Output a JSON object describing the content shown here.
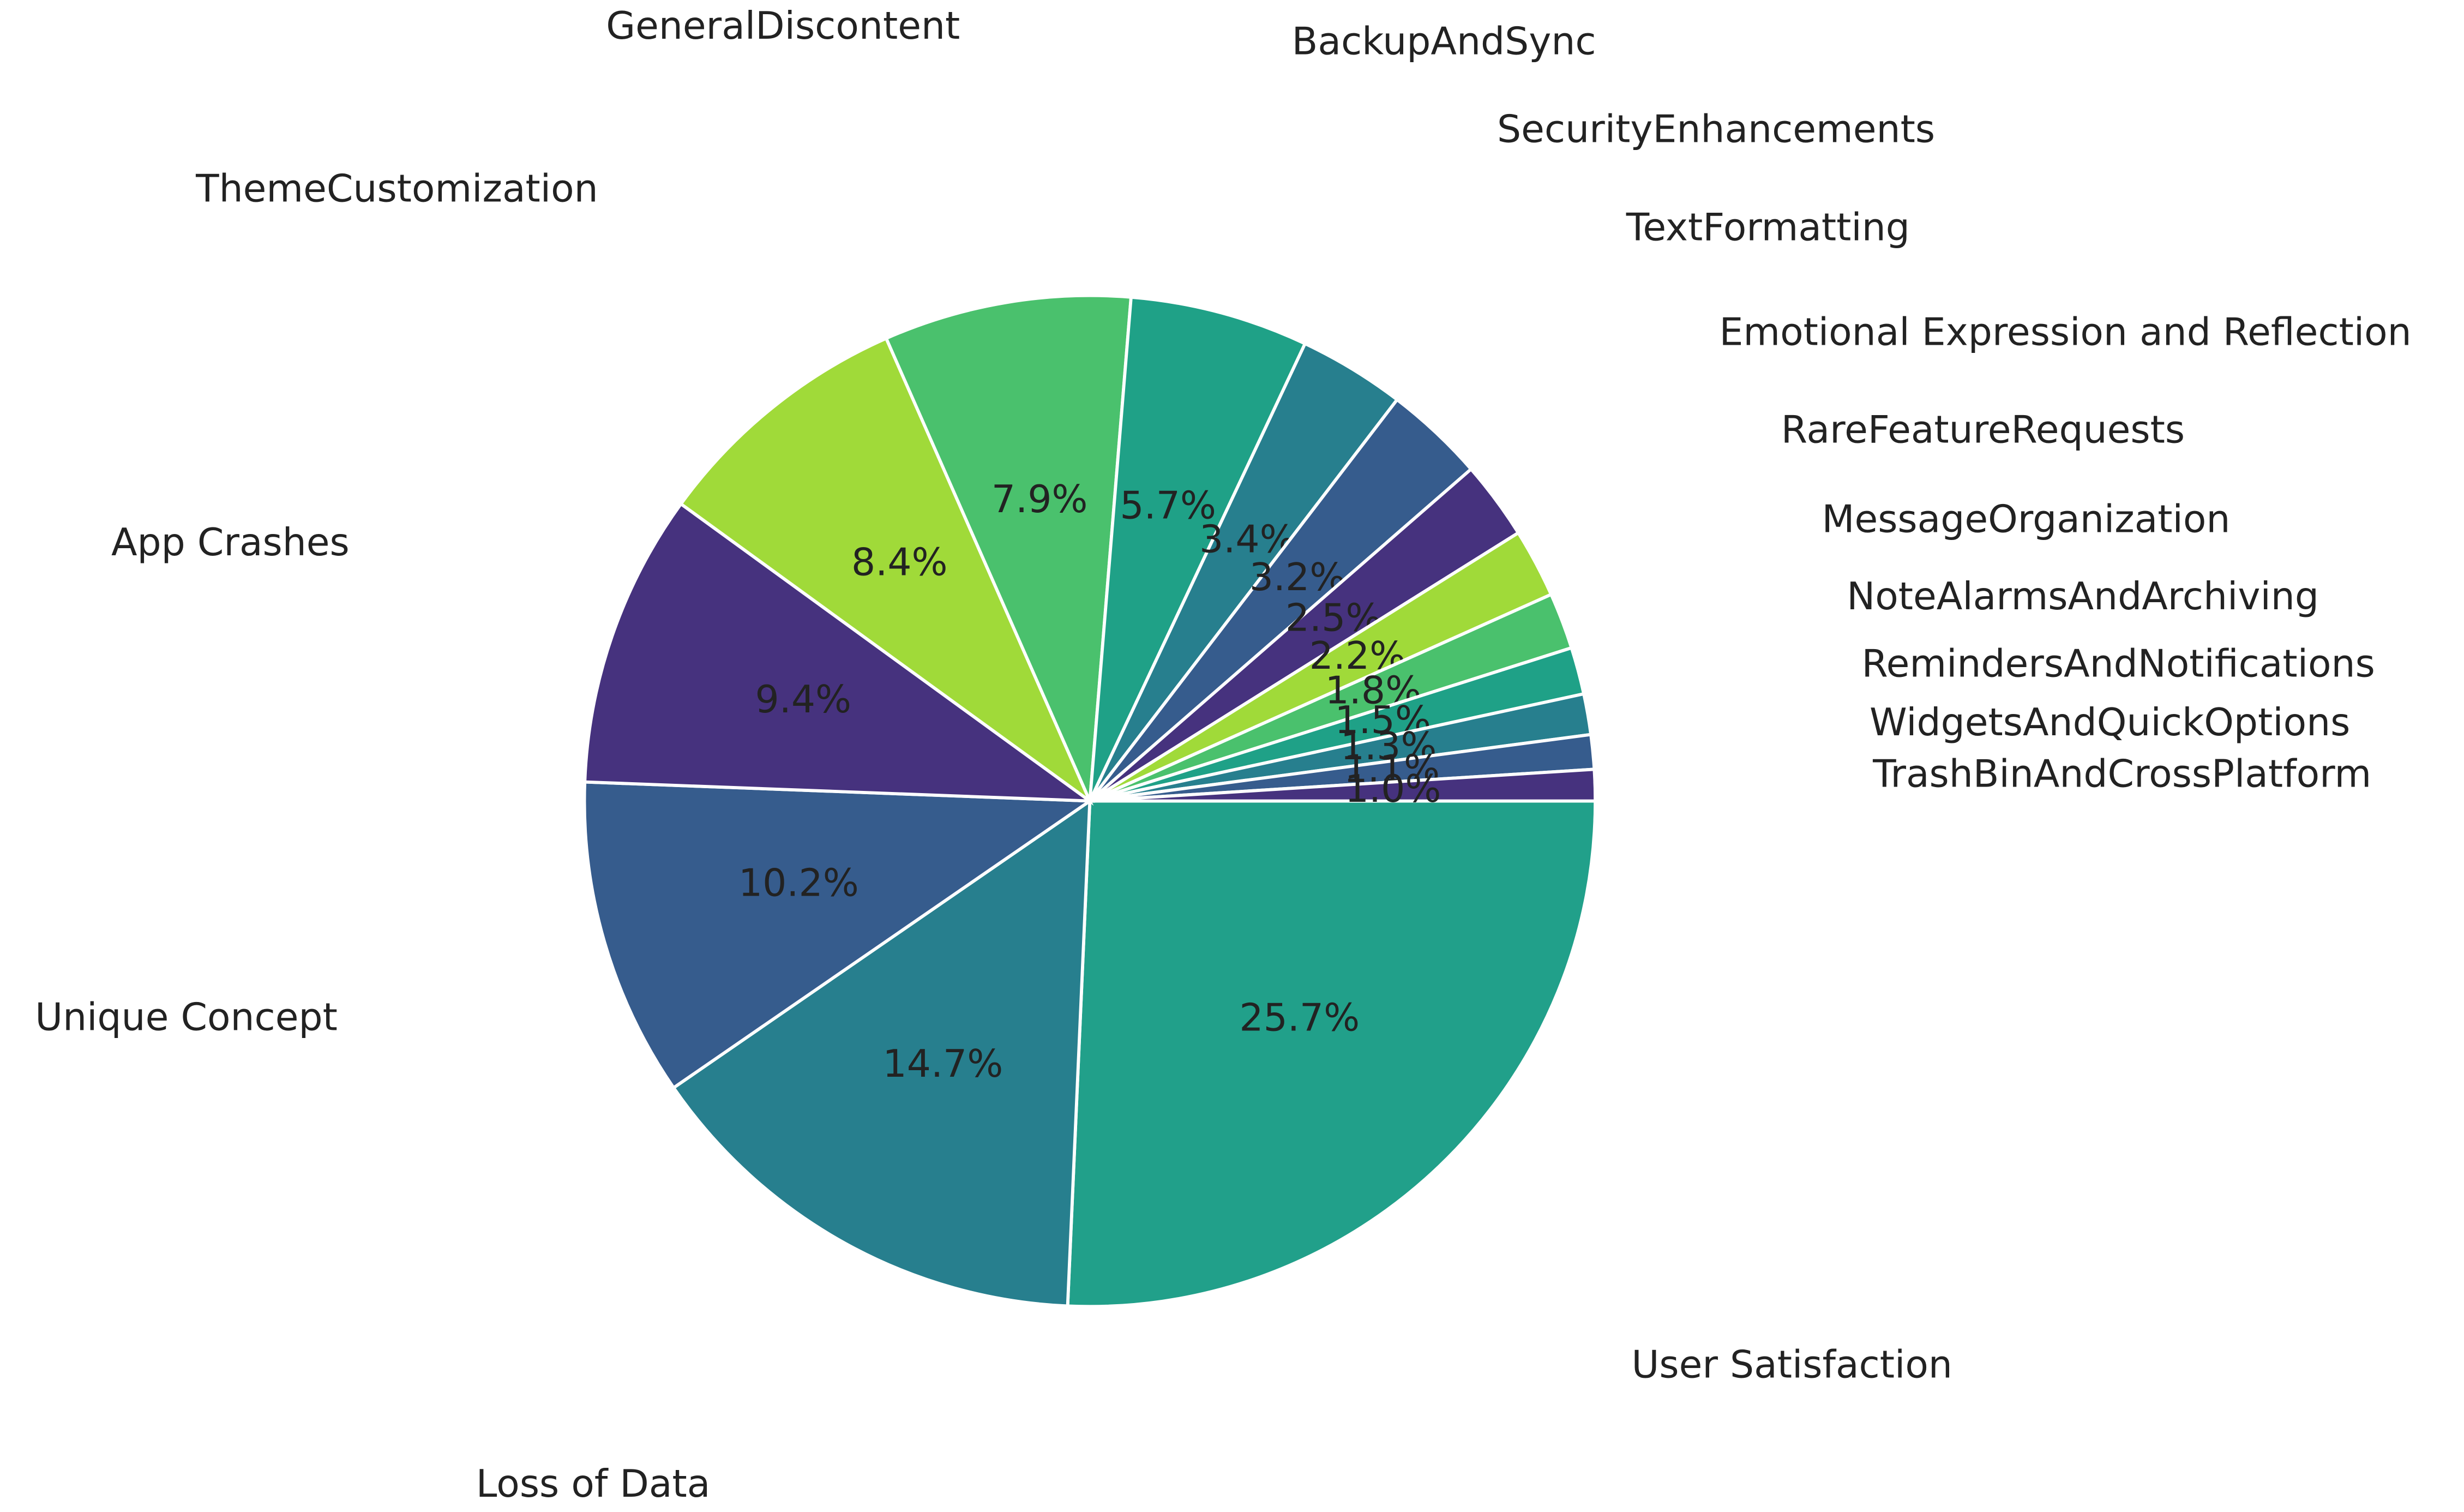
{
  "chart_data": {
    "type": "pie",
    "categories": [
      "User Satisfaction",
      "Loss of Data",
      "Unique Concept",
      "App Crashes",
      "ThemeCustomization",
      "GeneralDiscontent",
      "BackupAndSync",
      "SecurityEnhancements",
      "TextFormatting",
      "Emotional Expression and Reflection",
      "RareFeatureRequests",
      "MessageOrganization",
      "NoteAlarmsAndArchiving",
      "RemindersAndNotifications",
      "WidgetsAndQuickOptions",
      "TrashBinAndCrossPlatform"
    ],
    "values": [
      25.7,
      14.7,
      10.2,
      9.4,
      8.4,
      7.9,
      5.7,
      3.4,
      3.2,
      2.5,
      2.2,
      1.8,
      1.5,
      1.3,
      1.1,
      1.0
    ],
    "value_labels": [
      "25.7%",
      "14.7%",
      "10.2%",
      "9.4%",
      "8.4%",
      "7.9%",
      "5.7%",
      "3.4%",
      "3.2%",
      "2.5%",
      "2.2%",
      "1.8%",
      "1.5%",
      "1.3%",
      "1.1%",
      "1.0%"
    ],
    "colors": [
      "#21a08a",
      "#277f8e",
      "#365c8d",
      "#46327e",
      "#a0da39",
      "#4ac16d",
      "#1fa187",
      "#277f8e",
      "#365c8d",
      "#46327e",
      "#a0da39",
      "#4ac16d",
      "#1fa187",
      "#277f8e",
      "#365c8d",
      "#46327e"
    ]
  }
}
